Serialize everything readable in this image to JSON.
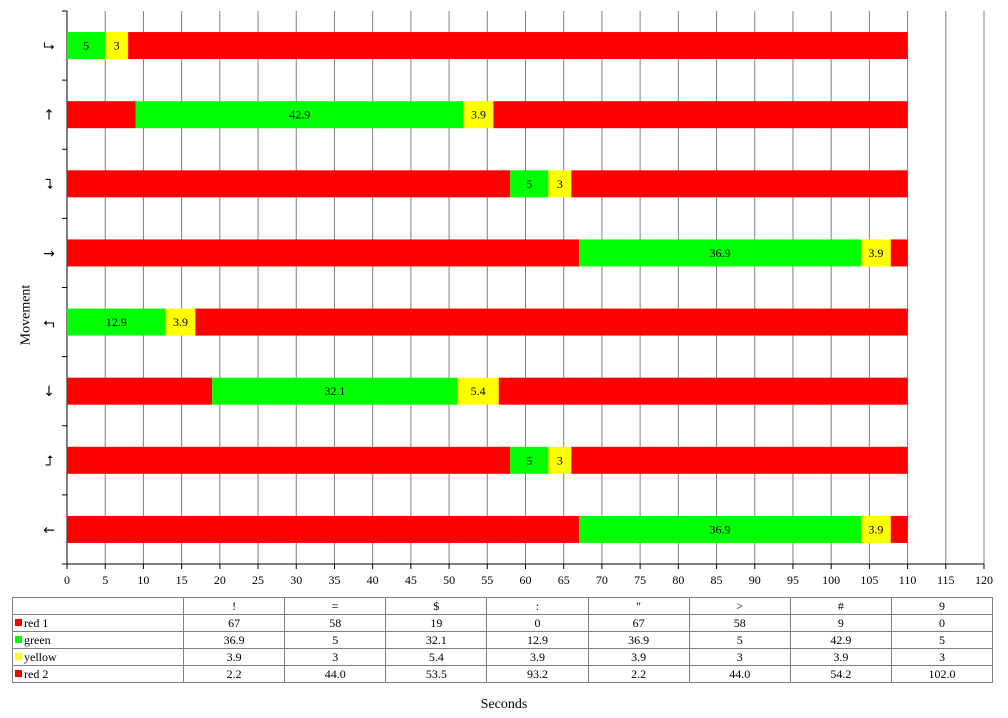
{
  "chart_data": {
    "type": "bar",
    "orientation": "horizontal",
    "stacked": true,
    "xlabel": "Seconds",
    "ylabel": "Movement",
    "xlim": [
      0,
      120
    ],
    "xticks": [
      0,
      5,
      10,
      15,
      20,
      25,
      30,
      35,
      40,
      45,
      50,
      55,
      60,
      65,
      70,
      75,
      80,
      85,
      90,
      95,
      100,
      105,
      110,
      115,
      120
    ],
    "grid": "vertical",
    "categories": [
      "!",
      "=",
      "$",
      ":",
      "\"",
      ">",
      "#",
      "9"
    ],
    "category_icons": [
      "←",
      "⮥",
      "↓",
      "⮢",
      "→",
      "⮧",
      "↑",
      "⮡"
    ],
    "series": [
      {
        "name": "red 1",
        "color": "#ff0000",
        "values": [
          67,
          58,
          19,
          0,
          67,
          58,
          9,
          0
        ]
      },
      {
        "name": "green",
        "color": "#00ff00",
        "values": [
          36.9,
          5,
          32.1,
          12.9,
          36.9,
          5,
          42.9,
          5
        ]
      },
      {
        "name": "yellow",
        "color": "#ffff00",
        "values": [
          3.9,
          3,
          5.4,
          3.9,
          3.9,
          3,
          3.9,
          3
        ]
      },
      {
        "name": "red 2",
        "color": "#ff0000",
        "values": [
          2.2,
          44.0,
          53.5,
          93.2,
          2.2,
          44.0,
          54.2,
          102.0
        ]
      }
    ],
    "table": {
      "header": [
        "!",
        "=",
        "$",
        ":",
        "\"",
        ">",
        "#",
        "9"
      ],
      "rows": [
        {
          "label": "red 1",
          "color": "#ff0000",
          "cells": [
            "67",
            "58",
            "19",
            "0",
            "67",
            "58",
            "9",
            "0"
          ]
        },
        {
          "label": "green",
          "color": "#00ff00",
          "cells": [
            "36.9",
            "5",
            "32.1",
            "12.9",
            "36.9",
            "5",
            "42.9",
            "5"
          ]
        },
        {
          "label": "yellow",
          "color": "#ffff00",
          "cells": [
            "3.9",
            "3",
            "5.4",
            "3.9",
            "3.9",
            "3",
            "3.9",
            "3"
          ]
        },
        {
          "label": "red 2",
          "color": "#ff0000",
          "cells": [
            "2.2",
            "44.0",
            "53.5",
            "93.2",
            "2.2",
            "44.0",
            "54.2",
            "102.0"
          ]
        }
      ]
    },
    "data_labels": {
      "green": [
        "36.9",
        "5",
        "32.1",
        "12.9",
        "36.9",
        "5",
        "42.9",
        "5"
      ],
      "yellow": [
        "3.9",
        "3",
        "5.4",
        "3.9",
        "3.9",
        "3",
        "3.9",
        "3"
      ]
    }
  }
}
